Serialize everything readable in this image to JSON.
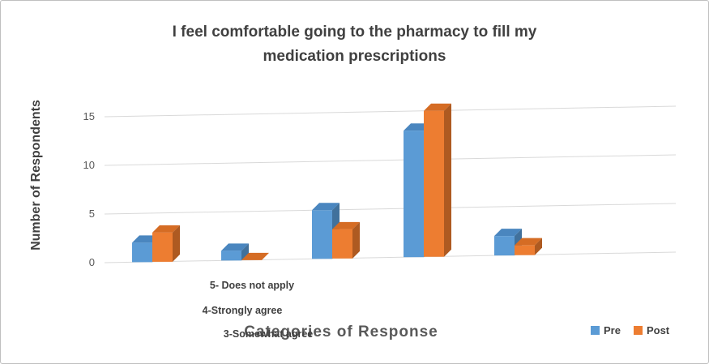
{
  "chart_data": {
    "type": "bar",
    "subtype": "3d-clustered-column",
    "title": "I feel comfortable going to the pharmacy to fill my medication prescriptions",
    "xlabel": "Categories of Response",
    "ylabel": "Number of Respondents",
    "categories": [
      "",
      "",
      "3-Somewhat agree",
      "4-Strongly agree",
      "5- Does not apply"
    ],
    "x_axis_label_lines": [
      "5- Does not apply",
      "4-Strongly agree",
      "3-Somewhat agree"
    ],
    "series": [
      {
        "name": "Pre",
        "color": "#5B9BD5",
        "values": [
          2,
          1,
          5,
          13,
          2
        ]
      },
      {
        "name": "Post",
        "color": "#ED7D31",
        "values": [
          3,
          0,
          3,
          15,
          1
        ]
      }
    ],
    "yticks": [
      0,
      5,
      10,
      15
    ],
    "ylim": [
      0,
      16
    ],
    "grid": true,
    "legend_position": "bottom-right"
  },
  "legend": {
    "items": [
      {
        "label": "Pre",
        "color": "#5B9BD5"
      },
      {
        "label": "Post",
        "color": "#ED7D31"
      }
    ]
  },
  "colors": {
    "pre": "#5B9BD5",
    "post": "#ED7D31",
    "grid": "#D9D9D9",
    "title_text": "#404040",
    "axis_text": "#595959"
  }
}
